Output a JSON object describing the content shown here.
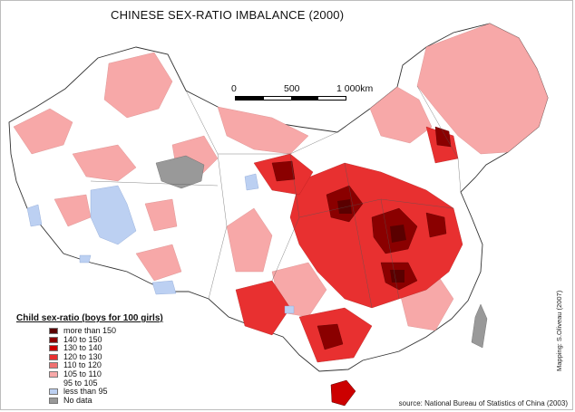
{
  "title": "CHINESE SEX-RATIO IMBALANCE (2000)",
  "scale_bar": {
    "labels": [
      "0",
      "500",
      "1 000km"
    ]
  },
  "legend": {
    "title": "Child sex-ratio (boys for 100 girls)",
    "items": [
      {
        "label": "more than 150",
        "color": "#5a0000"
      },
      {
        "label": "140 to 150",
        "color": "#8a0000"
      },
      {
        "label": "130 to 140",
        "color": "#cc0000"
      },
      {
        "label": "120 to 130",
        "color": "#e83030"
      },
      {
        "label": "110 to 120",
        "color": "#f07070"
      },
      {
        "label": "105 to 110",
        "color": "#f7a8a8"
      },
      {
        "label": "95 to 105",
        "color": "#ffffff"
      },
      {
        "label": "less than 95",
        "color": "#bcd0f2"
      },
      {
        "label": "No data",
        "color": "#999999"
      }
    ]
  },
  "source": "source: National Bureau of Statistics of China (2003)",
  "credit": "Mapping: S.Oliveau (2007)"
}
